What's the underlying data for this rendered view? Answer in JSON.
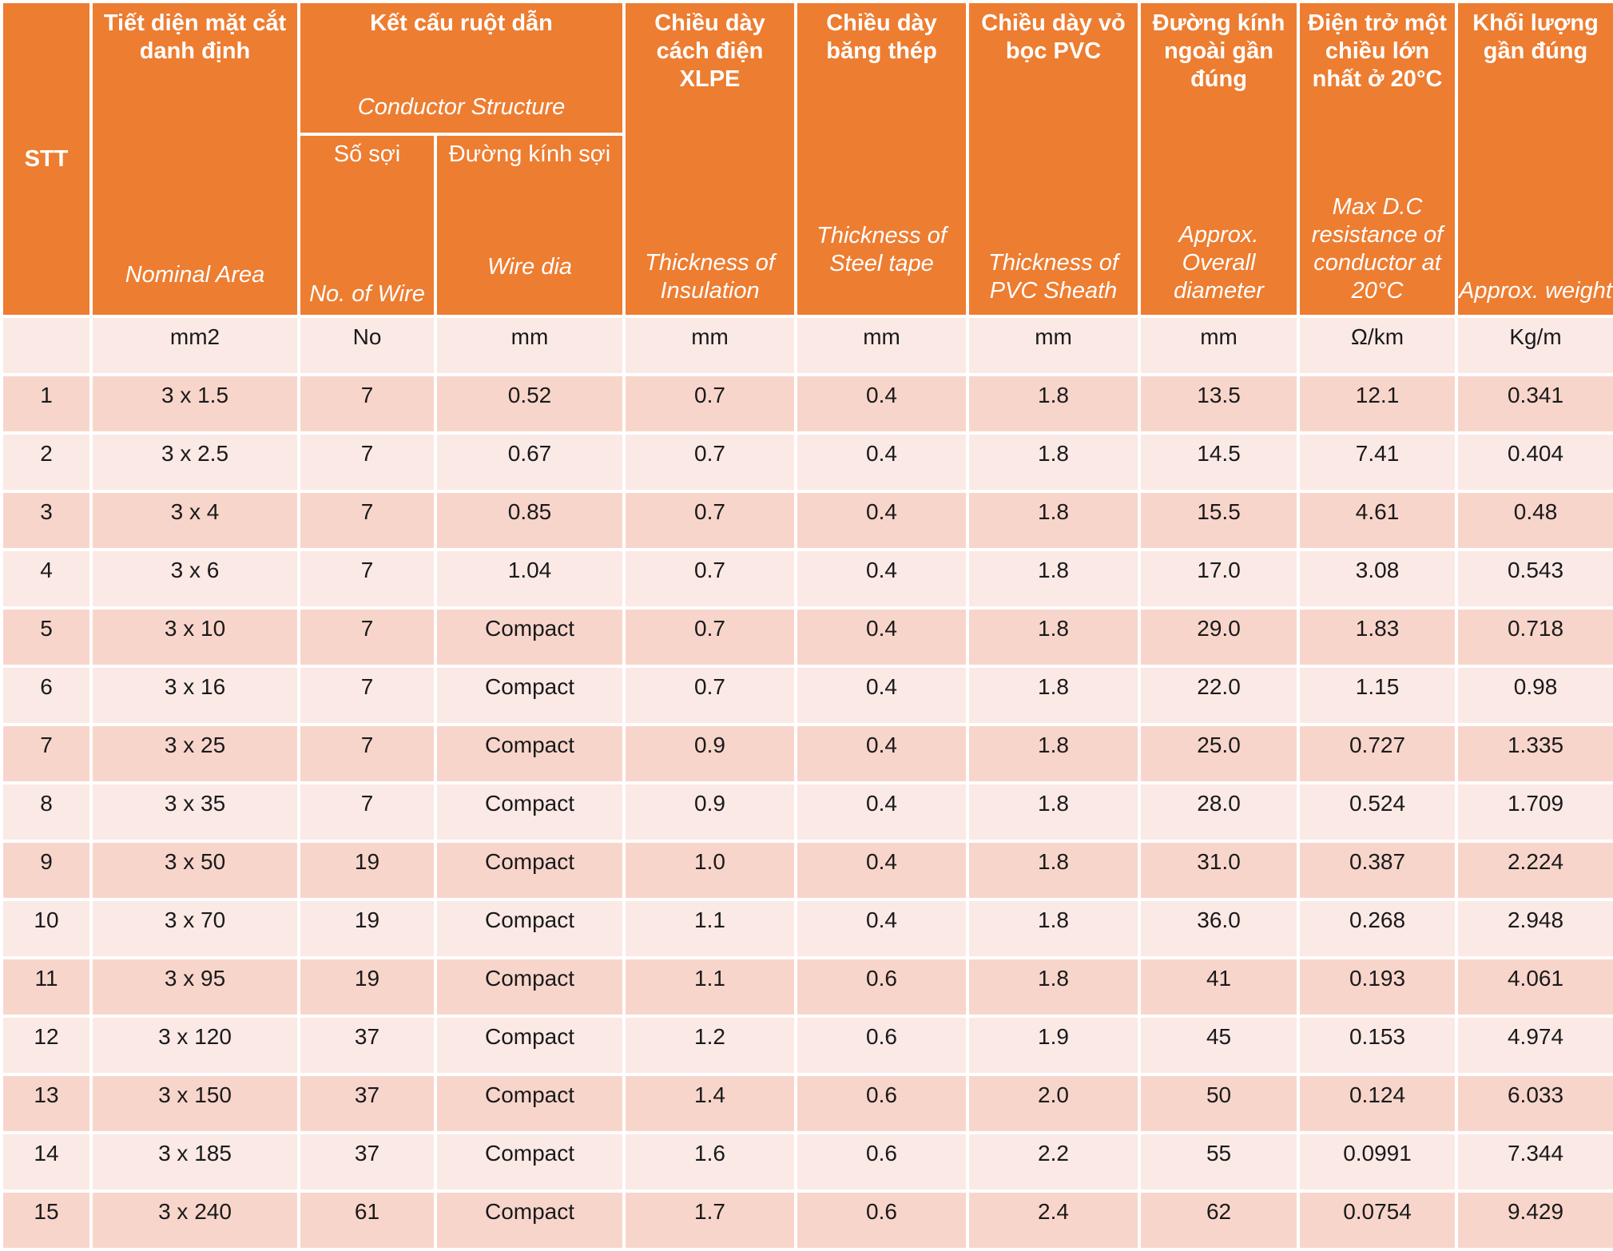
{
  "header": {
    "stt": "STT",
    "nominal_area": {
      "vi": "Tiết diện mặt cắt danh định",
      "en": "Nominal Area"
    },
    "conductor": {
      "vi": "Kết cấu ruột dẫn",
      "en": "Conductor Structure"
    },
    "num_wire": {
      "vi": "Số sợi",
      "en": "No. of Wire"
    },
    "wire_dia": {
      "vi": "Đường kính sợi",
      "en": "Wire dia"
    },
    "insulation": {
      "vi": "Chiều dày cách điện XLPE",
      "en": "Thickness of Insulation"
    },
    "steel_tape": {
      "vi": "Chiều dày băng thép",
      "en": "Thickness of Steel tape"
    },
    "pvc_sheath": {
      "vi": "Chiều dày vỏ bọc PVC",
      "en": "Thickness of PVC Sheath"
    },
    "overall_dia": {
      "vi": "Đường kính ngoài gần đúng",
      "en": "Approx. Overall diameter"
    },
    "resistance": {
      "vi": "Điện trở một chiều lớn nhất ở 20°C",
      "en": "Max D.C resistance of conductor at 20°C"
    },
    "weight": {
      "vi": "Khối lượng gần đúng",
      "en": "Approx. weight"
    }
  },
  "units": [
    "",
    "mm2",
    "No",
    "mm",
    "mm",
    "mm",
    "mm",
    "mm",
    "Ω/km",
    "Kg/m"
  ],
  "rows": [
    [
      "1",
      "3 x 1.5",
      "7",
      "0.52",
      "0.7",
      "0.4",
      "1.8",
      "13.5",
      "12.1",
      "0.341"
    ],
    [
      "2",
      "3 x 2.5",
      "7",
      "0.67",
      "0.7",
      "0.4",
      "1.8",
      "14.5",
      "7.41",
      "0.404"
    ],
    [
      "3",
      "3 x 4",
      "7",
      "0.85",
      "0.7",
      "0.4",
      "1.8",
      "15.5",
      "4.61",
      "0.48"
    ],
    [
      "4",
      "3 x 6",
      "7",
      "1.04",
      "0.7",
      "0.4",
      "1.8",
      "17.0",
      "3.08",
      "0.543"
    ],
    [
      "5",
      "3 x 10",
      "7",
      "Compact",
      "0.7",
      "0.4",
      "1.8",
      "29.0",
      "1.83",
      "0.718"
    ],
    [
      "6",
      "3 x 16",
      "7",
      "Compact",
      "0.7",
      "0.4",
      "1.8",
      "22.0",
      "1.15",
      "0.98"
    ],
    [
      "7",
      "3 x 25",
      "7",
      "Compact",
      "0.9",
      "0.4",
      "1.8",
      "25.0",
      "0.727",
      "1.335"
    ],
    [
      "8",
      "3 x 35",
      "7",
      "Compact",
      "0.9",
      "0.4",
      "1.8",
      "28.0",
      "0.524",
      "1.709"
    ],
    [
      "9",
      "3 x 50",
      "19",
      "Compact",
      "1.0",
      "0.4",
      "1.8",
      "31.0",
      "0.387",
      "2.224"
    ],
    [
      "10",
      "3 x 70",
      "19",
      "Compact",
      "1.1",
      "0.4",
      "1.8",
      "36.0",
      "0.268",
      "2.948"
    ],
    [
      "11",
      "3 x 95",
      "19",
      "Compact",
      "1.1",
      "0.6",
      "1.8",
      "41",
      "0.193",
      "4.061"
    ],
    [
      "12",
      "3 x 120",
      "37",
      "Compact",
      "1.2",
      "0.6",
      "1.9",
      "45",
      "0.153",
      "4.974"
    ],
    [
      "13",
      "3 x 150",
      "37",
      "Compact",
      "1.4",
      "0.6",
      "2.0",
      "50",
      "0.124",
      "6.033"
    ],
    [
      "14",
      "3 x 185",
      "37",
      "Compact",
      "1.6",
      "0.6",
      "2.2",
      "55",
      "0.0991",
      "7.344"
    ],
    [
      "15",
      "3 x 240",
      "61",
      "Compact",
      "1.7",
      "0.6",
      "2.4",
      "62",
      "0.0754",
      "9.429"
    ]
  ]
}
